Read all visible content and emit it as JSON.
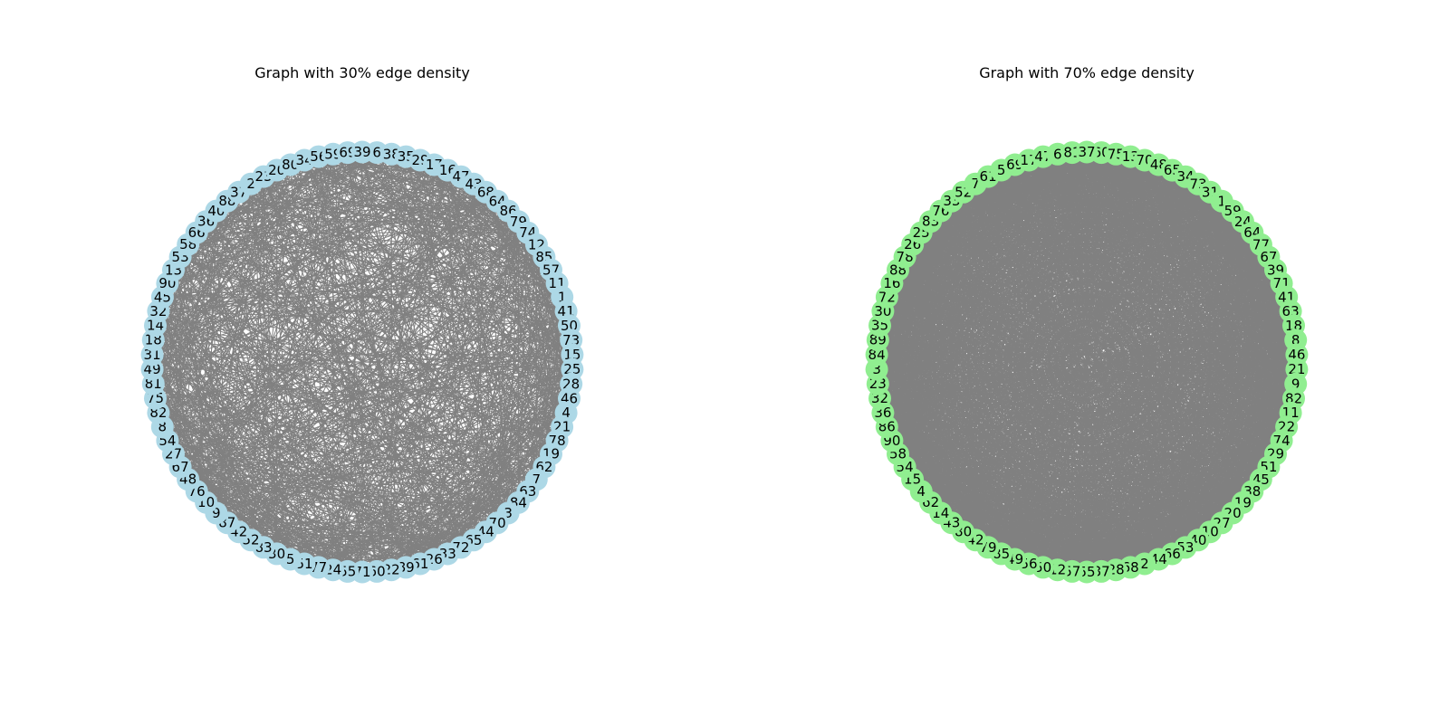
{
  "graphs": [
    {
      "title": "Graph with 30% edge density",
      "edge_density": 0.3,
      "node_color": "#add8e6",
      "edge_color": "#808080",
      "node_order": [
        6,
        38,
        35,
        29,
        17,
        16,
        47,
        43,
        68,
        64,
        86,
        79,
        74,
        12,
        85,
        57,
        11,
        1,
        41,
        50,
        73,
        15,
        25,
        28,
        46,
        4,
        21,
        78,
        19,
        62,
        7,
        63,
        84,
        3,
        70,
        44,
        65,
        72,
        33,
        26,
        61,
        89,
        22,
        60,
        71,
        55,
        24,
        77,
        51,
        5,
        30,
        83,
        52,
        42,
        87,
        9,
        10,
        76,
        48,
        67,
        27,
        54,
        8,
        82,
        75,
        81,
        49,
        31,
        18,
        14,
        32,
        45,
        90,
        13,
        53,
        58,
        66,
        36,
        40,
        88,
        37,
        2,
        23,
        20,
        80,
        34,
        56,
        59,
        69,
        39
      ]
    },
    {
      "title": "Graph with 70% edge density",
      "edge_density": 0.7,
      "node_color": "#90ee90",
      "edge_color": "#808080",
      "node_order": [
        60,
        75,
        13,
        70,
        48,
        65,
        34,
        73,
        31,
        1,
        59,
        24,
        64,
        77,
        67,
        39,
        71,
        41,
        63,
        18,
        8,
        46,
        21,
        9,
        82,
        11,
        22,
        74,
        29,
        51,
        45,
        38,
        19,
        20,
        27,
        10,
        40,
        53,
        66,
        44,
        2,
        68,
        28,
        87,
        55,
        57,
        12,
        50,
        56,
        49,
        85,
        79,
        42,
        80,
        43,
        14,
        62,
        4,
        15,
        54,
        58,
        90,
        86,
        36,
        32,
        23,
        3,
        84,
        89,
        35,
        30,
        72,
        16,
        88,
        78,
        26,
        25,
        83,
        76,
        33,
        52,
        7,
        61,
        5,
        69,
        17,
        47,
        6,
        81,
        37
      ]
    }
  ]
}
